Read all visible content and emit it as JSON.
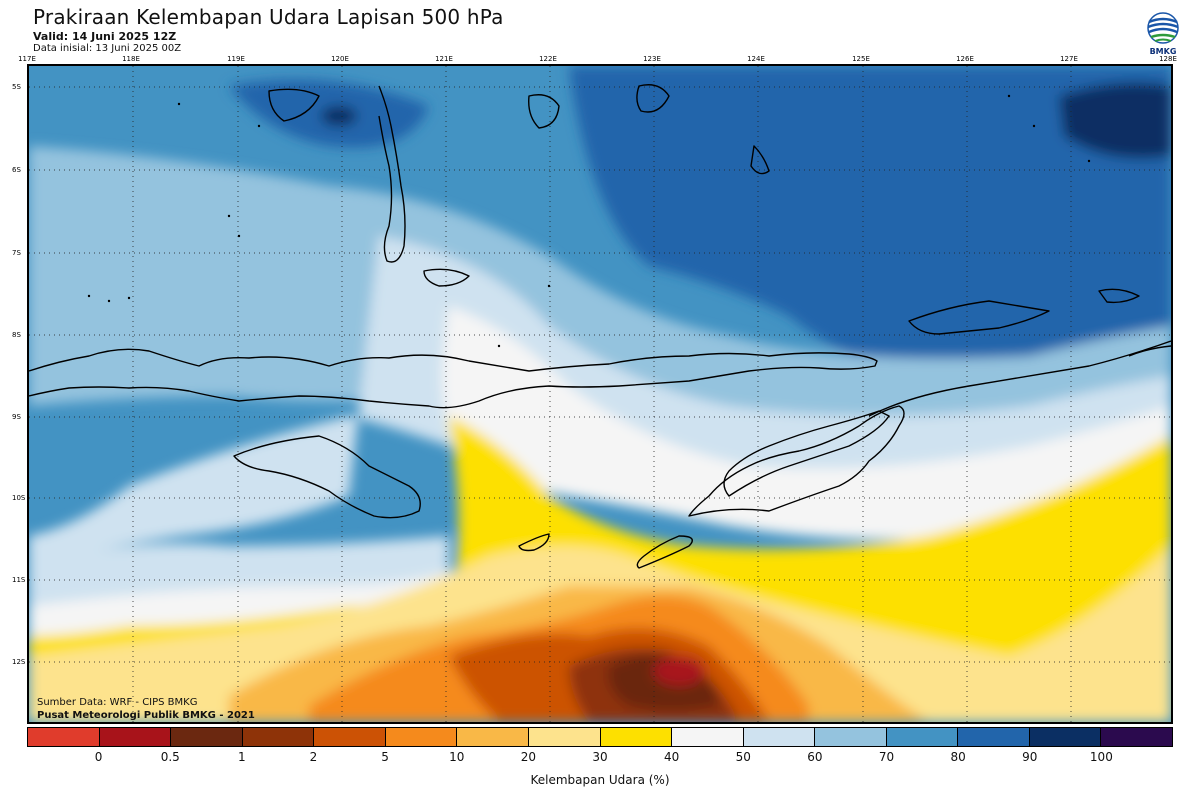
{
  "header": {
    "title": "Prakiraan Kelembapan Udara Lapisan 500 hPa",
    "valid": "Valid: 14 Juni 2025 12Z",
    "init": "Data inisial: 13 Juni 2025 00Z"
  },
  "logo": {
    "text": "BMKG"
  },
  "axes": {
    "lon_labels": [
      "117E",
      "118E",
      "119E",
      "120E",
      "121E",
      "122E",
      "123E",
      "124E",
      "125E",
      "126E",
      "127E",
      "128E"
    ],
    "lat_labels": [
      "5S",
      "6S",
      "7S",
      "8S",
      "9S",
      "10S",
      "11S",
      "12S"
    ]
  },
  "credits": {
    "source": "Sumber Data: WRF - CIPS BMKG",
    "org": "Pusat Meteorologi Publik BMKG - 2021"
  },
  "colorbar": {
    "label": "Kelembapan Udara (%)",
    "ticks": [
      "0",
      "0.5",
      "1",
      "2",
      "5",
      "10",
      "20",
      "30",
      "40",
      "50",
      "60",
      "70",
      "80",
      "90",
      "100"
    ],
    "colors": [
      "#e03c2c",
      "#a8131a",
      "#6b2810",
      "#8e3308",
      "#cc5205",
      "#f58a1c",
      "#f9b847",
      "#fde38d",
      "#fde000",
      "#f5f5f5",
      "#cfe2f0",
      "#94c3de",
      "#4393c3",
      "#2265ab",
      "#0b2f63",
      "#2b0a4e"
    ]
  },
  "map_colors": {
    "land_outline": "#000000",
    "grid": "#222222"
  }
}
